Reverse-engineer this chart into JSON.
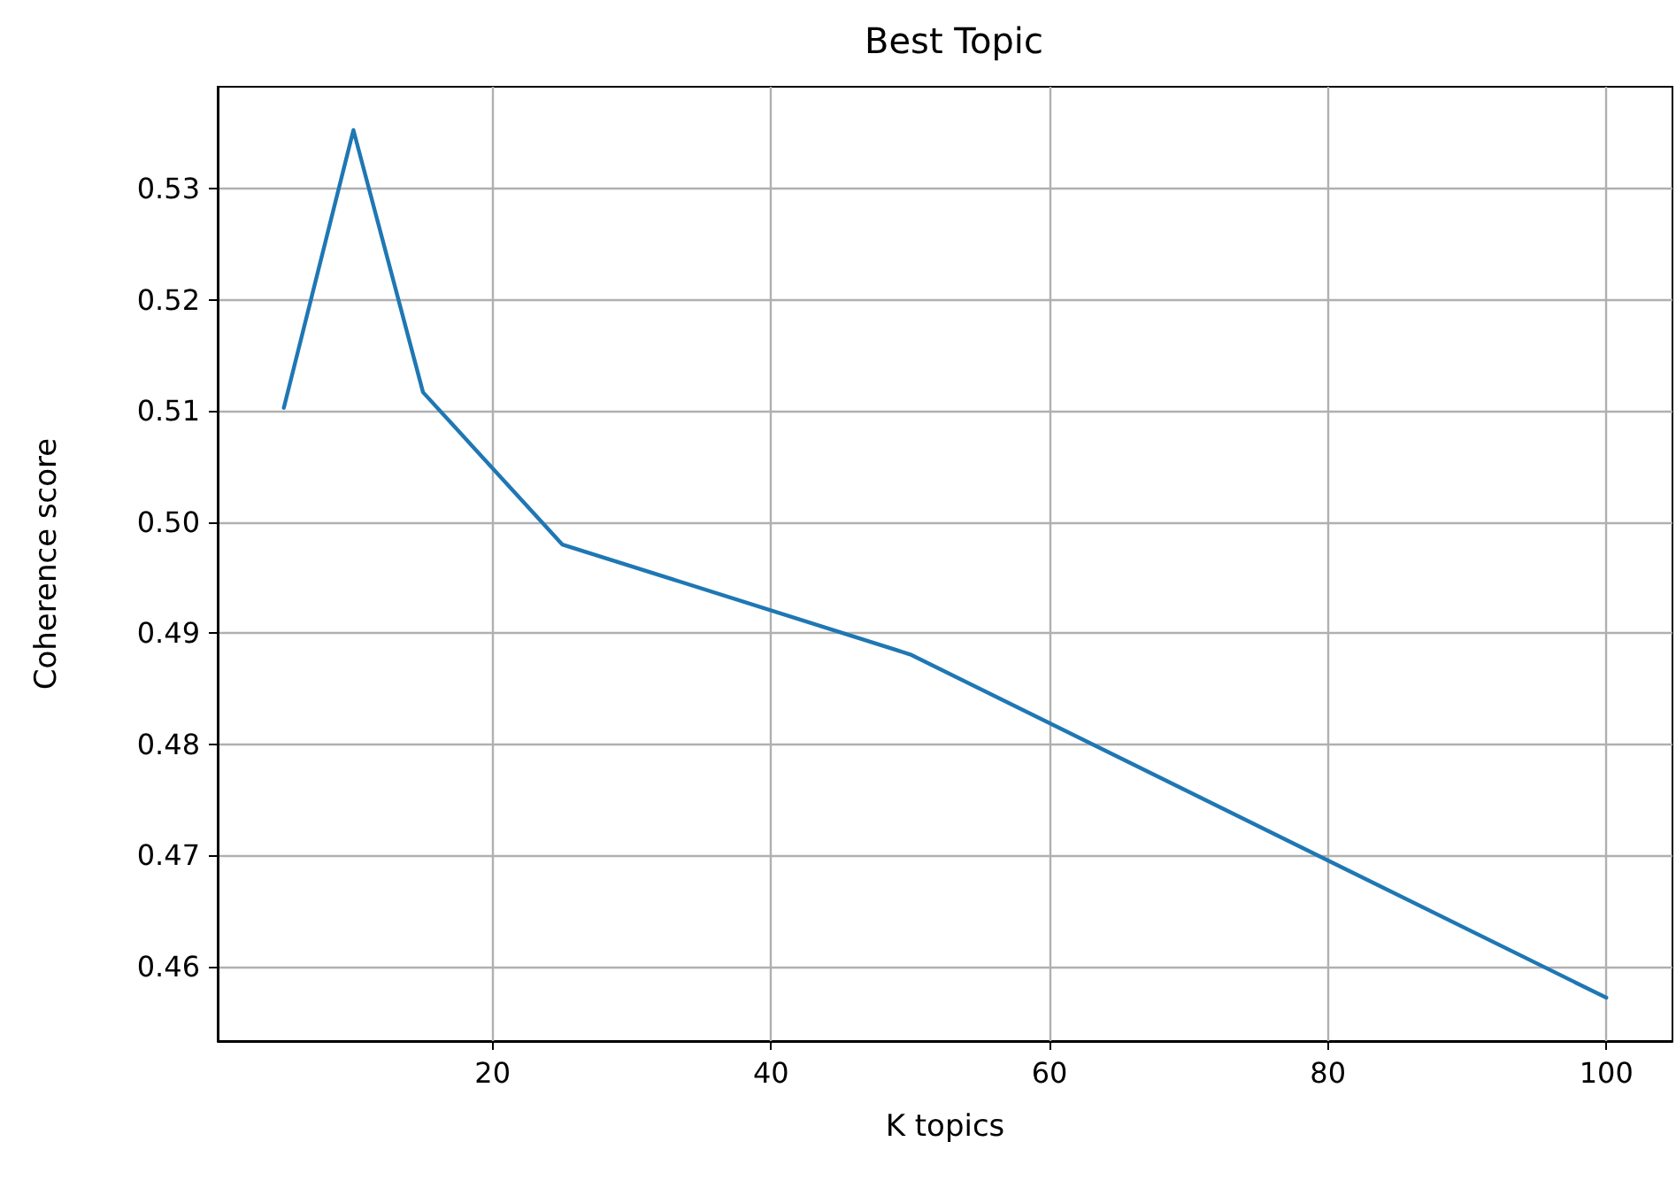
{
  "chart_data": {
    "type": "line",
    "title": "Best Topic",
    "xlabel": "K topics",
    "ylabel": "Coherence score",
    "x": [
      5,
      10,
      15,
      25,
      50,
      100
    ],
    "series": [
      {
        "color": "#1f77b4",
        "values": [
          0.5103,
          0.5353,
          0.5117,
          0.498,
          0.4881,
          0.4572
        ]
      }
    ],
    "xlim": [
      0.25,
      104.75
    ],
    "xticks": [
      20,
      40,
      60,
      80,
      100
    ],
    "ylim": [
      0.4533,
      0.5392
    ],
    "yticks": [
      0.46,
      0.47,
      0.48,
      0.49,
      {
        "value": 0.5,
        "label": "0.50"
      },
      0.51,
      0.52,
      0.53
    ],
    "grid": true,
    "marker": "none",
    "line_style": "solid"
  }
}
